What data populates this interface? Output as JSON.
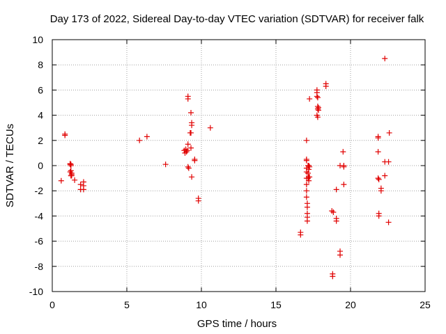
{
  "chart_data": {
    "type": "scatter",
    "title": "Day 173 of 2022, Sidereal Day-to-day VTEC variation (SDTVAR) for receiver falk",
    "xlabel": "GPS time / hours",
    "ylabel": "SDTVAR / TECUs",
    "xlim": [
      0,
      25
    ],
    "ylim": [
      -10,
      10
    ],
    "xticks": [
      0,
      5,
      10,
      15,
      20,
      25
    ],
    "yticks": [
      -10,
      -8,
      -6,
      -4,
      -2,
      0,
      2,
      4,
      6,
      8,
      10
    ],
    "grid": true,
    "marker": "plus",
    "color": "#e00000",
    "series": [
      {
        "name": "SDTVAR",
        "x": [
          0.6,
          0.85,
          0.85,
          1.2,
          1.25,
          1.2,
          1.3,
          1.25,
          1.3,
          1.2,
          1.25,
          1.3,
          1.25,
          1.5,
          1.9,
          1.9,
          2.1,
          2.1,
          2.1,
          5.85,
          6.35,
          7.6,
          8.85,
          8.9,
          8.95,
          9.0,
          9.05,
          9.1,
          9.1,
          9.1,
          9.1,
          9.15,
          9.25,
          9.3,
          9.35,
          9.35,
          9.3,
          9.3,
          9.35,
          9.55,
          9.55,
          9.8,
          9.8,
          10.6,
          16.65,
          16.65,
          17.05,
          17.05,
          17.05,
          17.05,
          17.05,
          17.05,
          17.05,
          17.05,
          17.05,
          17.1,
          17.1,
          17.1,
          17.1,
          17.1,
          17.15,
          17.15,
          17.15,
          17.2,
          17.2,
          17.2,
          17.2,
          17.25,
          17.25,
          17.25,
          17.75,
          17.75,
          17.75,
          17.8,
          17.8,
          17.85,
          17.8,
          17.85,
          17.75,
          17.8,
          18.35,
          18.35,
          18.75,
          18.8,
          18.8,
          18.85,
          19.05,
          19.05,
          19.05,
          19.3,
          19.3,
          19.3,
          19.5,
          19.55,
          19.55,
          19.55,
          21.85,
          21.85,
          21.85,
          21.85,
          21.9,
          21.9,
          21.9,
          22.05,
          22.05,
          22.3,
          22.3,
          22.3,
          22.55,
          22.6,
          22.55
        ],
        "y": [
          -1.2,
          2.5,
          2.4,
          0.1,
          0.0,
          -0.5,
          -0.7,
          0.1,
          -0.6,
          0.15,
          -0.8,
          -0.8,
          -0.4,
          -1.15,
          -1.5,
          -1.9,
          -1.3,
          -1.6,
          -1.9,
          2.0,
          2.3,
          0.1,
          1.2,
          1.0,
          1.3,
          1.1,
          1.2,
          1.7,
          5.5,
          5.3,
          -0.1,
          -0.2,
          2.6,
          4.2,
          3.4,
          3.2,
          2.6,
          1.4,
          -0.9,
          0.5,
          0.4,
          -2.6,
          -2.8,
          3.0,
          -5.3,
          -5.5,
          2.0,
          0.5,
          0.4,
          -0.2,
          -0.5,
          -1.0,
          -1.5,
          -2.0,
          -2.5,
          -3.0,
          -3.3,
          -3.8,
          -4.1,
          -4.4,
          -0.6,
          -1.0,
          0.0,
          -1.2,
          -0.9,
          -0.3,
          0.0,
          -0.1,
          -0.9,
          5.3,
          5.8,
          6.0,
          5.5,
          5.4,
          4.7,
          4.4,
          4.5,
          4.6,
          4.0,
          3.85,
          6.5,
          6.3,
          -3.6,
          -8.6,
          -8.8,
          -3.7,
          -1.9,
          -4.2,
          -4.4,
          0.0,
          -6.8,
          -7.1,
          1.1,
          -1.5,
          -0.1,
          0.0,
          2.3,
          2.2,
          1.1,
          -1.0,
          -1.1,
          -3.8,
          -4.0,
          -1.8,
          -2.0,
          8.5,
          -0.8,
          0.3,
          0.3,
          2.6,
          -4.5
        ]
      }
    ]
  }
}
